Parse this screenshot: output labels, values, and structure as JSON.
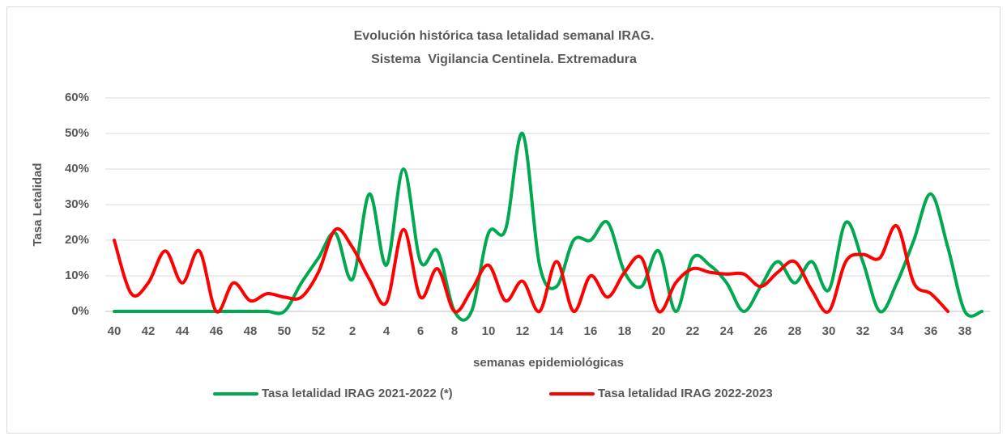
{
  "chart_data": {
    "type": "line",
    "title": "Evolución histórica tasa letalidad semanal IRAG.",
    "subtitle": "Sistema  Vigilancia Centinela. Extremadura",
    "y_label": "Tasa Letalidad",
    "x_label": "semanas epidemiológicas",
    "categories": [
      "40",
      null,
      "42",
      null,
      "44",
      null,
      "46",
      null,
      "48",
      null,
      "50",
      null,
      "52",
      null,
      "2",
      null,
      "4",
      null,
      "6",
      null,
      "8",
      null,
      "10",
      null,
      "12",
      null,
      "14",
      null,
      "16",
      null,
      "18",
      null,
      "20",
      null,
      "22",
      null,
      "24",
      null,
      "26",
      null,
      "28",
      null,
      "30",
      null,
      "32",
      null,
      "34",
      null,
      "36",
      null,
      "38",
      null
    ],
    "series": [
      {
        "name": "Tasa letalidad IRAG 2021-2022 (*)",
        "color": "#00a84f",
        "values": [
          0,
          0,
          0,
          0,
          0,
          0,
          0,
          0,
          0,
          0,
          0,
          8,
          15,
          22,
          9,
          33,
          13,
          40,
          14,
          17,
          0,
          0,
          22,
          23,
          50,
          13,
          7,
          20,
          20,
          25,
          11,
          7,
          17,
          0,
          15,
          13,
          8,
          0,
          7,
          14,
          8,
          14,
          6,
          25,
          14,
          0,
          8,
          20,
          33,
          18,
          0,
          0
        ]
      },
      {
        "name": "Tasa letalidad IRAG 2022-2023",
        "color": "#ff0000",
        "values": [
          20,
          5,
          8,
          17,
          8,
          17,
          0,
          8,
          3,
          5,
          4,
          4,
          11,
          23,
          18,
          9,
          2.5,
          23,
          4,
          12,
          0,
          6,
          13,
          3,
          8.5,
          0,
          14,
          0,
          10,
          4,
          11,
          15,
          0,
          8,
          12,
          11,
          10.5,
          10.5,
          7,
          11,
          14,
          6,
          0,
          14,
          16,
          15,
          24,
          8,
          5,
          0,
          null,
          null
        ]
      }
    ],
    "ylim": [
      0,
      60
    ],
    "yticks": [
      {
        "value": 0,
        "label": "0%"
      },
      {
        "value": 10,
        "label": "10%"
      },
      {
        "value": 20,
        "label": "20%"
      },
      {
        "value": 30,
        "label": "30%"
      },
      {
        "value": 40,
        "label": "40%"
      },
      {
        "value": 50,
        "label": "50%"
      },
      {
        "value": 60,
        "label": "60%"
      }
    ],
    "grid": true,
    "legend": "bottom"
  }
}
